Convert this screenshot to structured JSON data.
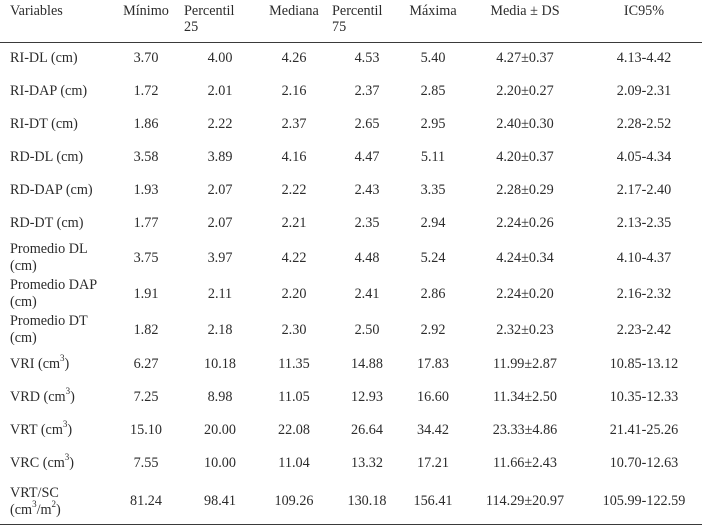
{
  "table": {
    "headers": {
      "variables": "Variables",
      "minimo": "Mínimo",
      "p25_line1": "Percentil",
      "p25_line2": "25",
      "mediana": "Mediana",
      "p75_line1": "Percentil",
      "p75_line2": "75",
      "maxima": "Máxima",
      "media_ds": "Media ± DS",
      "ic95": "IC95%"
    },
    "rows": [
      {
        "var": "RI-DL (cm)",
        "min": "3.70",
        "p25": "4.00",
        "med": "4.26",
        "p75": "4.53",
        "max": "5.40",
        "mean": "4.27±0.37",
        "ci": "4.13-4.42"
      },
      {
        "var": "RI-DAP (cm)",
        "min": "1.72",
        "p25": "2.01",
        "med": "2.16",
        "p75": "2.37",
        "max": "2.85",
        "mean": "2.20±0.27",
        "ci": "2.09-2.31"
      },
      {
        "var": "RI-DT (cm)",
        "min": "1.86",
        "p25": "2.22",
        "med": "2.37",
        "p75": "2.65",
        "max": "2.95",
        "mean": "2.40±0.30",
        "ci": "2.28-2.52"
      },
      {
        "var": "RD-DL (cm)",
        "min": "3.58",
        "p25": "3.89",
        "med": "4.16",
        "p75": "4.47",
        "max": "5.11",
        "mean": "4.20±0.37",
        "ci": "4.05-4.34"
      },
      {
        "var": "RD-DAP (cm)",
        "min": "1.93",
        "p25": "2.07",
        "med": "2.22",
        "p75": "2.43",
        "max": "3.35",
        "mean": "2.28±0.29",
        "ci": "2.17-2.40"
      },
      {
        "var": "RD-DT (cm)",
        "min": "1.77",
        "p25": "2.07",
        "med": "2.21",
        "p75": "2.35",
        "max": "2.94",
        "mean": "2.24±0.26",
        "ci": "2.13-2.35"
      },
      {
        "var_l1": "Promedio DL",
        "var_l2": "(cm)",
        "min": "3.75",
        "p25": "3.97",
        "med": "4.22",
        "p75": "4.48",
        "max": "5.24",
        "mean": "4.24±0.34",
        "ci": "4.10-4.37"
      },
      {
        "var_l1": "Promedio DAP",
        "var_l2": "(cm)",
        "min": "1.91",
        "p25": "2.11",
        "med": "2.20",
        "p75": "2.41",
        "max": "2.86",
        "mean": "2.24±0.20",
        "ci": "2.16-2.32"
      },
      {
        "var_l1": "Promedio DT",
        "var_l2": "(cm)",
        "min": "1.82",
        "p25": "2.18",
        "med": "2.30",
        "p75": "2.50",
        "max": "2.92",
        "mean": "2.32±0.23",
        "ci": "2.23-2.42"
      },
      {
        "var": "VRI (cm",
        "sup": "3",
        "close": ")",
        "min": "6.27",
        "p25": "10.18",
        "med": "11.35",
        "p75": "14.88",
        "max": "17.83",
        "mean": "11.99±2.87",
        "ci": "10.85-13.12"
      },
      {
        "var": "VRD (cm",
        "sup": "3",
        "close": ")",
        "min": "7.25",
        "p25": "8.98",
        "med": "11.05",
        "p75": "12.93",
        "max": "16.60",
        "mean": "11.34±2.50",
        "ci": "10.35-12.33"
      },
      {
        "var": "VRT (cm",
        "sup": "3",
        "close": ")",
        "min": "15.10",
        "p25": "20.00",
        "med": "22.08",
        "p75": "26.64",
        "max": "34.42",
        "mean": "23.33±4.86",
        "ci": "21.41-25.26"
      },
      {
        "var": "VRC (cm",
        "sup": "3",
        "close": ")",
        "min": "7.55",
        "p25": "10.00",
        "med": "11.04",
        "p75": "13.32",
        "max": "17.21",
        "mean": "11.66±2.43",
        "ci": "10.70-12.63"
      },
      {
        "var_l1": "VRT/SC",
        "var_l2": "(cm",
        "sup": "3",
        "close": "/m",
        "sup2": "2",
        "close2": ")",
        "min": "81.24",
        "p25": "98.41",
        "med": "109.26",
        "p75": "130.18",
        "max": "156.41",
        "mean": "114.29±20.97",
        "ci": "105.99-122.59"
      }
    ]
  }
}
